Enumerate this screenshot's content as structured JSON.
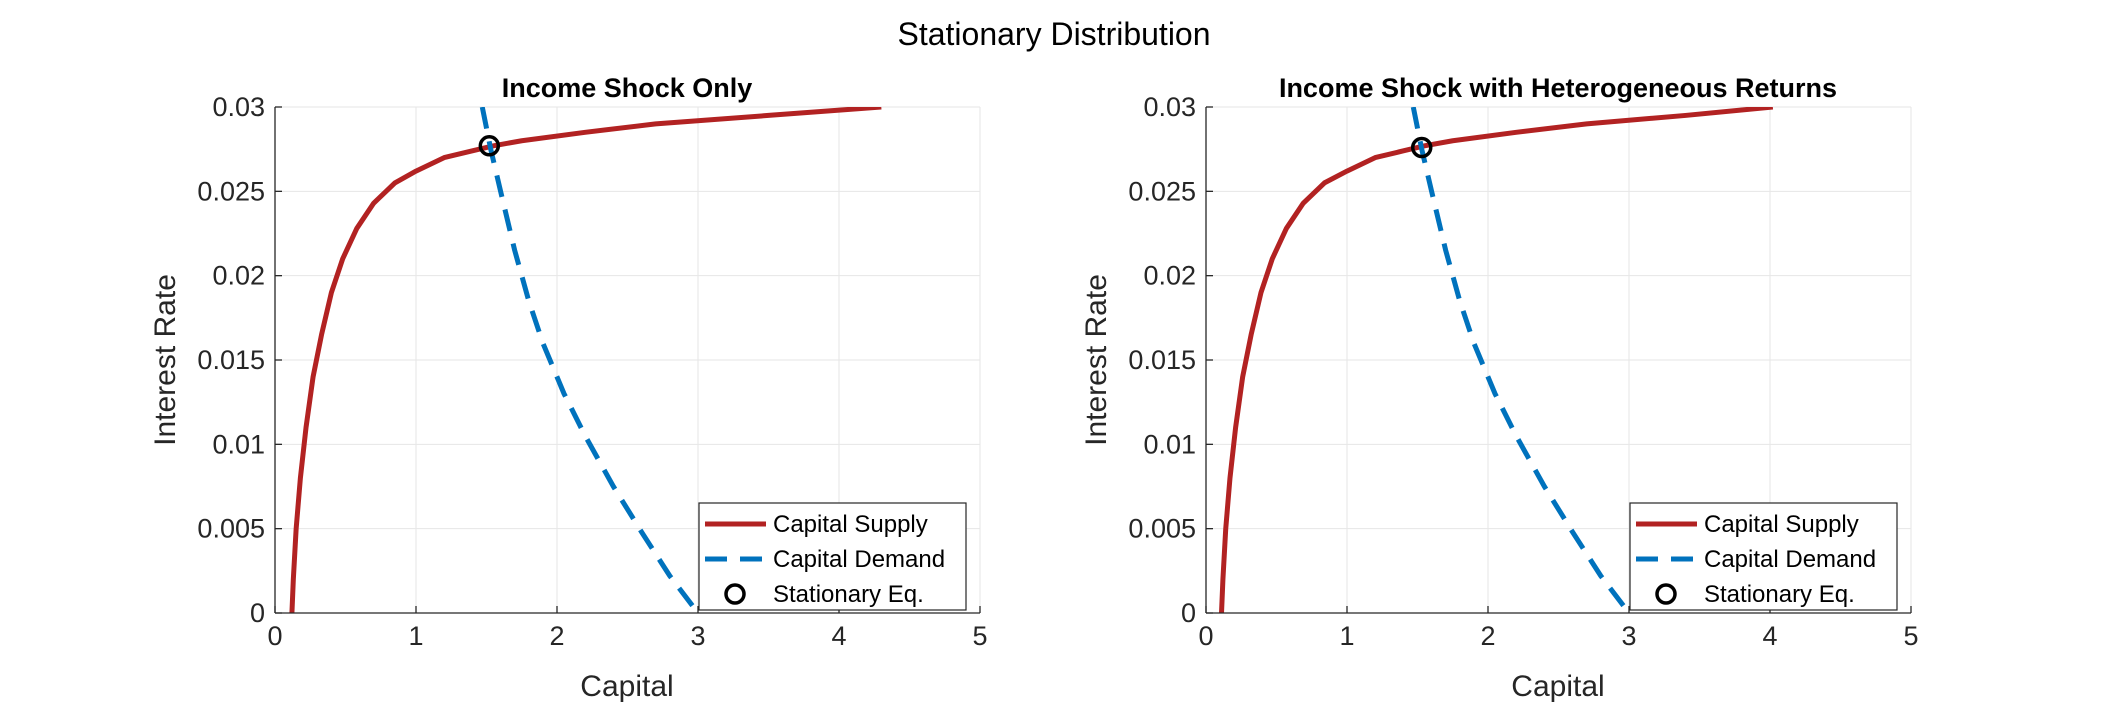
{
  "figure": {
    "suptitle": "Stationary Distribution"
  },
  "chart_data": [
    {
      "type": "line",
      "title": "Income Shock Only",
      "xlabel": "Capital",
      "ylabel": "Interest Rate",
      "xlim": [
        0,
        5
      ],
      "ylim": [
        0,
        0.03
      ],
      "xticks": [
        "0",
        "1",
        "2",
        "3",
        "4",
        "5"
      ],
      "yticks": [
        "0",
        "0.005",
        "0.01",
        "0.015",
        "0.02",
        "0.025",
        "0.03"
      ],
      "grid": true,
      "legend_position": "bottom-right",
      "colors": {
        "supply": "#B22222",
        "demand": "#0072BD",
        "equilibrium": "#000000"
      },
      "series": [
        {
          "name": "Capital Supply",
          "style": "solid",
          "points": [
            [
              0.12,
              0
            ],
            [
              0.13,
              0.002
            ],
            [
              0.15,
              0.005
            ],
            [
              0.18,
              0.008
            ],
            [
              0.22,
              0.011
            ],
            [
              0.27,
              0.014
            ],
            [
              0.33,
              0.0165
            ],
            [
              0.4,
              0.019
            ],
            [
              0.48,
              0.021
            ],
            [
              0.58,
              0.0228
            ],
            [
              0.7,
              0.0243
            ],
            [
              0.85,
              0.0255
            ],
            [
              1.0,
              0.0262
            ],
            [
              1.2,
              0.027
            ],
            [
              1.4,
              0.0274
            ],
            [
              1.55,
              0.0277
            ],
            [
              1.75,
              0.028
            ],
            [
              2.2,
              0.0285
            ],
            [
              2.7,
              0.029
            ],
            [
              3.5,
              0.0295
            ],
            [
              4.3,
              0.03
            ]
          ]
        },
        {
          "name": "Capital Demand",
          "style": "dashed",
          "points": [
            [
              1.47,
              0.03
            ],
            [
              1.53,
              0.0275
            ],
            [
              1.6,
              0.025
            ],
            [
              1.7,
              0.0215
            ],
            [
              1.8,
              0.0185
            ],
            [
              1.9,
              0.016
            ],
            [
              2.05,
              0.013
            ],
            [
              2.2,
              0.0105
            ],
            [
              2.4,
              0.0075
            ],
            [
              2.6,
              0.0048
            ],
            [
              2.8,
              0.0022
            ],
            [
              3.0,
              0
            ]
          ]
        }
      ],
      "equilibrium": {
        "name": "Stationary Eq.",
        "x": 1.52,
        "y": 0.0277
      }
    },
    {
      "type": "line",
      "title": "Income Shock with Heterogeneous Returns",
      "xlabel": "Capital",
      "ylabel": "Interest Rate",
      "xlim": [
        0,
        5
      ],
      "ylim": [
        0,
        0.03
      ],
      "xticks": [
        "0",
        "1",
        "2",
        "3",
        "4",
        "5"
      ],
      "yticks": [
        "0",
        "0.005",
        "0.01",
        "0.015",
        "0.02",
        "0.025",
        "0.03"
      ],
      "grid": true,
      "legend_position": "bottom-right",
      "colors": {
        "supply": "#B22222",
        "demand": "#0072BD",
        "equilibrium": "#000000"
      },
      "series": [
        {
          "name": "Capital Supply",
          "style": "solid",
          "points": [
            [
              0.11,
              0
            ],
            [
              0.12,
              0.002
            ],
            [
              0.14,
              0.005
            ],
            [
              0.17,
              0.008
            ],
            [
              0.21,
              0.011
            ],
            [
              0.26,
              0.014
            ],
            [
              0.32,
              0.0165
            ],
            [
              0.39,
              0.019
            ],
            [
              0.47,
              0.021
            ],
            [
              0.57,
              0.0228
            ],
            [
              0.69,
              0.0243
            ],
            [
              0.84,
              0.0255
            ],
            [
              1.0,
              0.0262
            ],
            [
              1.2,
              0.027
            ],
            [
              1.4,
              0.0274
            ],
            [
              1.55,
              0.0277
            ],
            [
              1.75,
              0.028
            ],
            [
              2.2,
              0.0285
            ],
            [
              2.7,
              0.029
            ],
            [
              3.4,
              0.0295
            ],
            [
              4.02,
              0.03
            ]
          ]
        },
        {
          "name": "Capital Demand",
          "style": "dashed",
          "points": [
            [
              1.47,
              0.03
            ],
            [
              1.53,
              0.0275
            ],
            [
              1.6,
              0.025
            ],
            [
              1.7,
              0.0215
            ],
            [
              1.8,
              0.0185
            ],
            [
              1.9,
              0.016
            ],
            [
              2.05,
              0.013
            ],
            [
              2.2,
              0.0105
            ],
            [
              2.4,
              0.0075
            ],
            [
              2.6,
              0.0048
            ],
            [
              2.8,
              0.0022
            ],
            [
              3.0,
              0
            ]
          ]
        }
      ],
      "equilibrium": {
        "name": "Stationary Eq.",
        "x": 1.53,
        "y": 0.0276
      }
    }
  ]
}
